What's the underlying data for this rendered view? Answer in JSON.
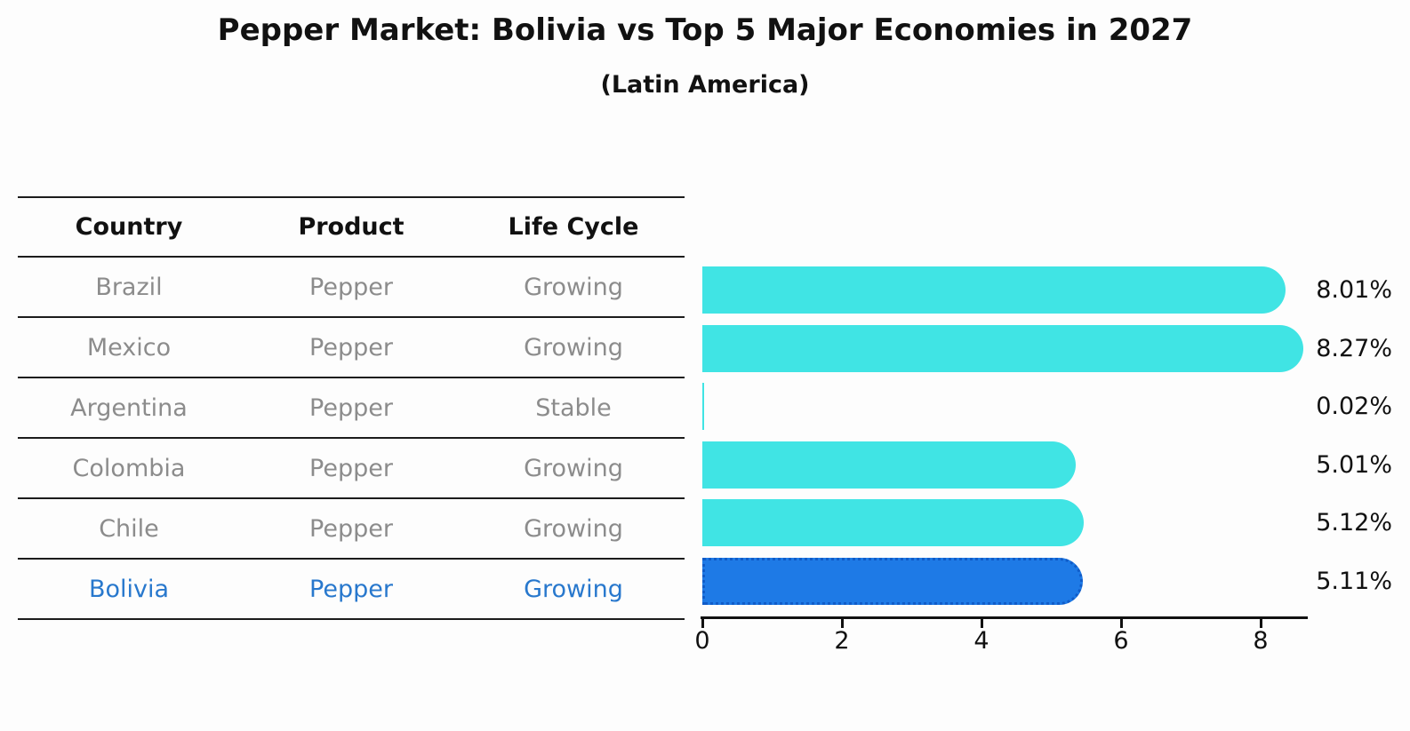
{
  "header": {
    "title": "Pepper Market: Bolivia vs Top 5 Major Economies in 2027",
    "subtitle": "(Latin America)"
  },
  "table": {
    "columns": [
      "Country",
      "Product",
      "Life Cycle"
    ],
    "rows": [
      {
        "country": "Brazil",
        "product": "Pepper",
        "life_cycle": "Growing",
        "highlight": false
      },
      {
        "country": "Mexico",
        "product": "Pepper",
        "life_cycle": "Growing",
        "highlight": false
      },
      {
        "country": "Argentina",
        "product": "Pepper",
        "life_cycle": "Stable",
        "highlight": false
      },
      {
        "country": "Colombia",
        "product": "Pepper",
        "life_cycle": "Growing",
        "highlight": false
      },
      {
        "country": "Chile",
        "product": "Pepper",
        "life_cycle": "Growing",
        "highlight": false
      },
      {
        "country": "Bolivia",
        "product": "Pepper",
        "life_cycle": "Growing",
        "highlight": true
      }
    ]
  },
  "chart_data": {
    "type": "bar",
    "orientation": "horizontal",
    "title": "Pepper Market: Bolivia vs Top 5 Major Economies in 2027",
    "subtitle": "(Latin America)",
    "categories": [
      "Brazil",
      "Mexico",
      "Argentina",
      "Colombia",
      "Chile",
      "Bolivia"
    ],
    "values": [
      8.01,
      8.27,
      0.02,
      5.01,
      5.12,
      5.11
    ],
    "value_labels": [
      "8.01%",
      "8.27%",
      "0.02%",
      "5.01%",
      "5.12%",
      "5.11%"
    ],
    "x_ticks": [
      0,
      2,
      4,
      6,
      8
    ],
    "xlim": [
      0,
      8.65
    ],
    "grid": false,
    "legend_position": "none",
    "highlight_index": 5,
    "colors": {
      "bar": "#40E4E4",
      "highlight_bar": "#1E7AE6",
      "highlight_border": "#105CC8",
      "axis": "#111111",
      "table_line": "#1C1C1C",
      "cell_text": "#8C8C8C",
      "highlight_text": "#2878CD"
    }
  }
}
